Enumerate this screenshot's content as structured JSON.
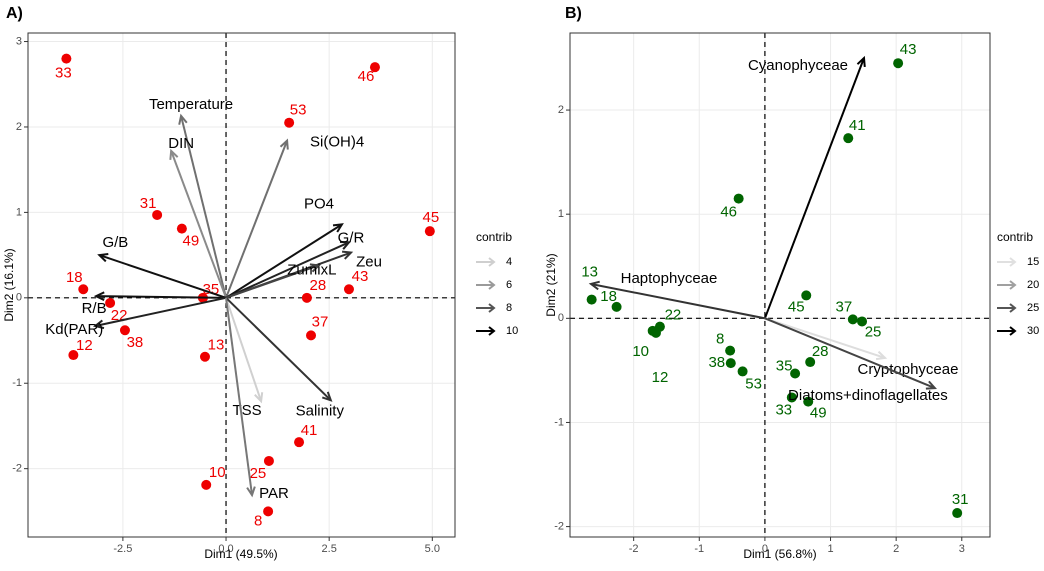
{
  "chart_data": [
    {
      "type": "biplot",
      "title": "A)",
      "x_label": "Dim1 (49.5%)",
      "y_label": "Dim2 (16.1%)",
      "xlim": [
        -4.8,
        5.55
      ],
      "ylim": [
        -2.8,
        3.1
      ],
      "xticks": [
        -2.5,
        {
          "value": 0,
          "label": "0.0"
        },
        2.5,
        {
          "value": 5,
          "label": "5.0"
        }
      ],
      "yticks": [
        -2,
        -1,
        0,
        1,
        2,
        3
      ],
      "grid": true,
      "point_color": "#ee0000",
      "points": {
        "labels": [
          "33",
          "46",
          "53",
          "31",
          "49",
          "45",
          "18",
          "35",
          "22",
          "38",
          "12",
          "28",
          "43",
          "37",
          "13",
          "41",
          "25",
          "10",
          "8"
        ],
        "x": [
          -3.87,
          3.61,
          1.53,
          -1.67,
          -1.07,
          4.94,
          -3.46,
          -0.56,
          -2.81,
          -2.45,
          -3.7,
          1.96,
          2.98,
          2.06,
          -0.51,
          1.77,
          1.04,
          -0.48,
          1.02
        ],
        "y": [
          2.8,
          2.7,
          2.05,
          0.97,
          0.81,
          0.78,
          0.1,
          0.0,
          -0.06,
          -0.38,
          -0.67,
          0.0,
          0.1,
          -0.44,
          -0.69,
          -1.69,
          -1.91,
          -2.19,
          -2.5
        ]
      },
      "variables": {
        "labels": [
          "Temperature",
          "DIN",
          "Si(OH)4",
          "PO4",
          "G/R",
          "Zeu",
          "ZumixL",
          "G/B",
          "R/B",
          "Kd(PAR)",
          "TSS",
          "Salinity",
          "PAR"
        ],
        "x": [
          -1.09,
          -1.33,
          1.48,
          2.81,
          2.98,
          3.03,
          2.25,
          -3.07,
          -3.15,
          -3.17,
          0.85,
          2.54,
          0.63
        ],
        "y": [
          2.13,
          1.72,
          1.84,
          0.86,
          0.65,
          0.53,
          0.38,
          0.5,
          0.02,
          -0.33,
          -1.21,
          -1.2,
          -2.31
        ],
        "colors": [
          "#707070",
          "#8a8a8a",
          "#707070",
          "#111111",
          "#222222",
          "#333333",
          "#444444",
          "#111111",
          "#111111",
          "#222222",
          "#d0d0d0",
          "#333333",
          "#777777"
        ]
      },
      "legend": {
        "title": "contrib",
        "values": [
          4,
          6,
          8,
          10
        ],
        "colors": [
          "#cfcfcf",
          "#9a9a9a",
          "#555555",
          "#000000"
        ]
      }
    },
    {
      "type": "biplot",
      "title": "B)",
      "x_label": "Dim1 (56.8%)",
      "y_label": "Dim2 (21%)",
      "xlim": [
        -2.97,
        3.43
      ],
      "ylim": [
        -2.1,
        2.74
      ],
      "xticks": [
        -2,
        -1,
        0,
        1,
        2,
        3
      ],
      "yticks": [
        -2,
        -1,
        0,
        1,
        2
      ],
      "grid": true,
      "point_color": "#006400",
      "points": {
        "labels": [
          "43",
          "41",
          "46",
          "13",
          "18",
          "10",
          "22",
          "12",
          "45",
          "37",
          "25",
          "8",
          "38",
          "53",
          "28",
          "35",
          "33",
          "49",
          "31"
        ],
        "x": [
          2.03,
          1.27,
          -0.4,
          -2.64,
          -2.26,
          -1.71,
          -1.6,
          -1.66,
          0.63,
          1.34,
          1.48,
          -0.53,
          -0.52,
          -0.34,
          0.69,
          0.46,
          0.41,
          0.66,
          2.93
        ],
        "y": [
          2.45,
          1.73,
          1.15,
          0.18,
          0.11,
          -0.12,
          -0.08,
          -0.14,
          0.22,
          -0.01,
          -0.03,
          -0.31,
          -0.43,
          -0.51,
          -0.42,
          -0.53,
          -0.76,
          -0.8,
          -1.87
        ]
      },
      "variables": {
        "labels": [
          "Cyanophyceae",
          "Haptophyceae",
          "Cryptophyceae",
          "Diatoms+dinoflagellates"
        ],
        "x": [
          1.51,
          -2.65,
          1.83,
          2.59
        ],
        "y": [
          2.5,
          0.33,
          -0.38,
          -0.67
        ],
        "colors": [
          "#000000",
          "#333333",
          "#dddddd",
          "#444444"
        ]
      },
      "legend": {
        "title": "contrib",
        "values": [
          15,
          20,
          25,
          30
        ],
        "colors": [
          "#e0e0e0",
          "#a0a0a0",
          "#555555",
          "#000000"
        ]
      }
    }
  ]
}
